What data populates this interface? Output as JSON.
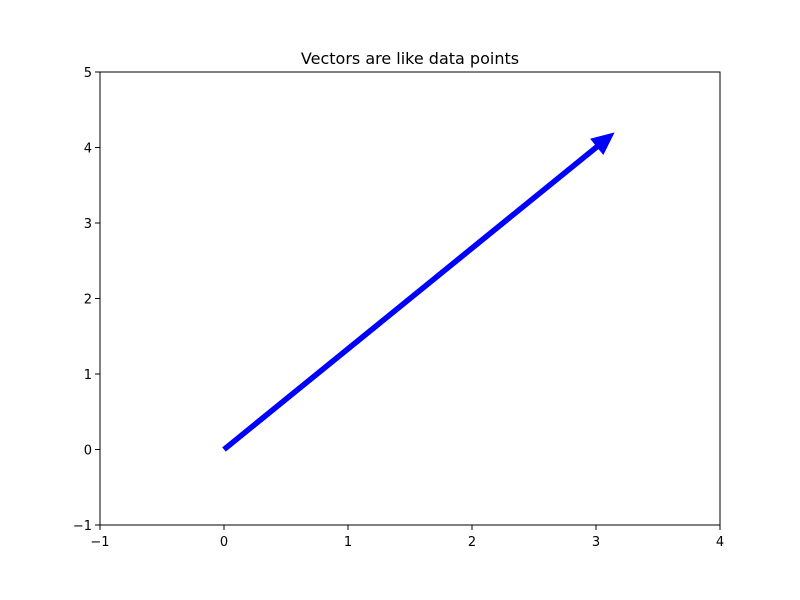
{
  "chart_data": {
    "type": "vector",
    "title": "Vectors are like data points",
    "xlabel": "",
    "ylabel": "",
    "xlim": [
      -1,
      4
    ],
    "ylim": [
      -1,
      5
    ],
    "x_ticks": [
      -1,
      0,
      1,
      2,
      3,
      4
    ],
    "y_ticks": [
      -1,
      0,
      1,
      2,
      3,
      4,
      5
    ],
    "x_tick_labels": [
      "−1",
      "0",
      "1",
      "2",
      "3",
      "4"
    ],
    "y_tick_labels": [
      "−1",
      "0",
      "1",
      "2",
      "3",
      "4",
      "5"
    ],
    "grid": false,
    "vectors": [
      {
        "start": [
          0,
          0
        ],
        "end": [
          3.15,
          4.2
        ],
        "color": "#0000ff"
      }
    ]
  }
}
